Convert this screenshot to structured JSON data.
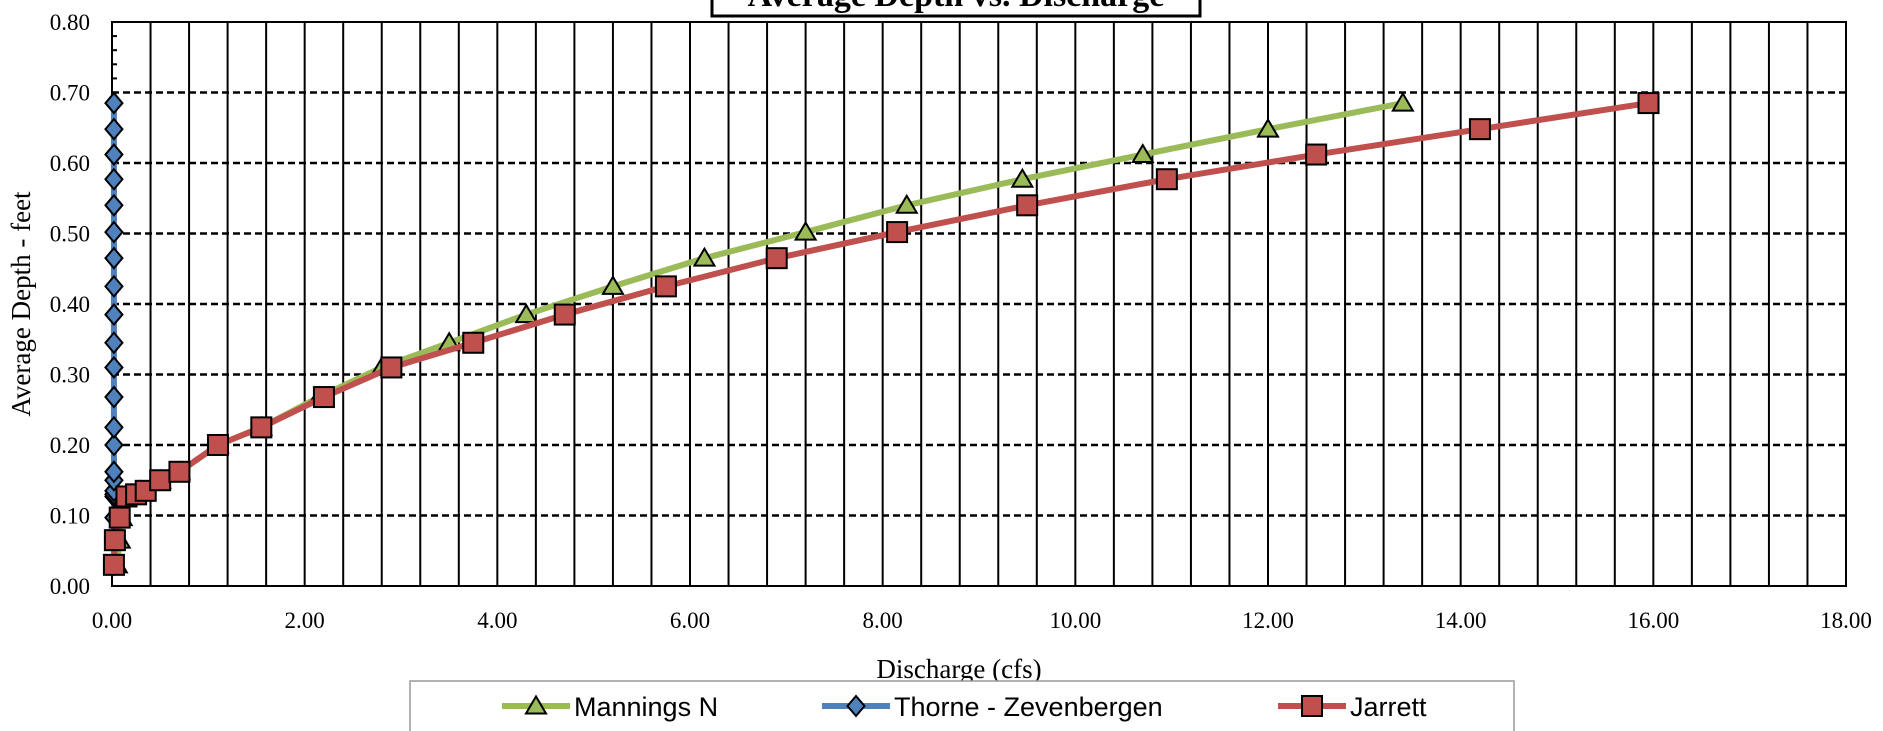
{
  "chart_data": {
    "type": "line",
    "title": "Average Depth vs. Discharge",
    "xlabel": "Discharge (cfs)",
    "ylabel": "Average Depth - feet",
    "xlim": [
      0,
      18
    ],
    "ylim": [
      0,
      0.8
    ],
    "x_ticks": [
      "0.00",
      "2.00",
      "4.00",
      "6.00",
      "8.00",
      "10.00",
      "12.00",
      "14.00",
      "16.00",
      "18.00"
    ],
    "y_ticks": [
      "0.00",
      "0.10",
      "0.20",
      "0.30",
      "0.40",
      "0.50",
      "0.60",
      "0.70",
      "0.80"
    ],
    "grid": true,
    "legend_position": "bottom",
    "series": [
      {
        "name": "Mannings N",
        "color": "#9BBB59",
        "marker": "triangle",
        "x": [
          0.05,
          0.08,
          0.1,
          0.15,
          0.2,
          0.3,
          0.5,
          0.7,
          1.1,
          1.55,
          2.15,
          2.8,
          3.5,
          4.3,
          5.2,
          6.15,
          7.2,
          8.25,
          9.45,
          10.7,
          12.0,
          13.4
        ],
        "y": [
          0.03,
          0.065,
          0.097,
          0.127,
          0.13,
          0.135,
          0.15,
          0.162,
          0.2,
          0.225,
          0.268,
          0.31,
          0.345,
          0.385,
          0.425,
          0.465,
          0.502,
          0.54,
          0.577,
          0.612,
          0.648,
          0.685
        ]
      },
      {
        "name": "Thorne - Zevenbergen",
        "color": "#4F81BD",
        "marker": "diamond",
        "x": [
          0.02,
          0.02,
          0.02,
          0.02,
          0.02,
          0.02,
          0.02,
          0.02,
          0.02,
          0.02,
          0.02,
          0.02,
          0.02,
          0.02,
          0.02,
          0.02,
          0.02,
          0.02,
          0.02,
          0.02,
          0.02,
          0.02
        ],
        "y": [
          0.03,
          0.065,
          0.097,
          0.127,
          0.13,
          0.135,
          0.15,
          0.162,
          0.2,
          0.225,
          0.268,
          0.31,
          0.345,
          0.385,
          0.425,
          0.465,
          0.502,
          0.54,
          0.577,
          0.612,
          0.648,
          0.685
        ]
      },
      {
        "name": "Jarrett",
        "color": "#C0504D",
        "marker": "square",
        "x": [
          0.02,
          0.03,
          0.08,
          0.15,
          0.25,
          0.35,
          0.5,
          0.7,
          1.1,
          1.55,
          2.2,
          2.9,
          3.75,
          4.7,
          5.75,
          6.9,
          8.15,
          9.5,
          10.95,
          12.5,
          14.2,
          15.95
        ],
        "y": [
          0.03,
          0.065,
          0.097,
          0.127,
          0.13,
          0.135,
          0.15,
          0.162,
          0.2,
          0.225,
          0.268,
          0.31,
          0.345,
          0.385,
          0.425,
          0.465,
          0.502,
          0.54,
          0.577,
          0.612,
          0.648,
          0.685
        ]
      }
    ]
  }
}
